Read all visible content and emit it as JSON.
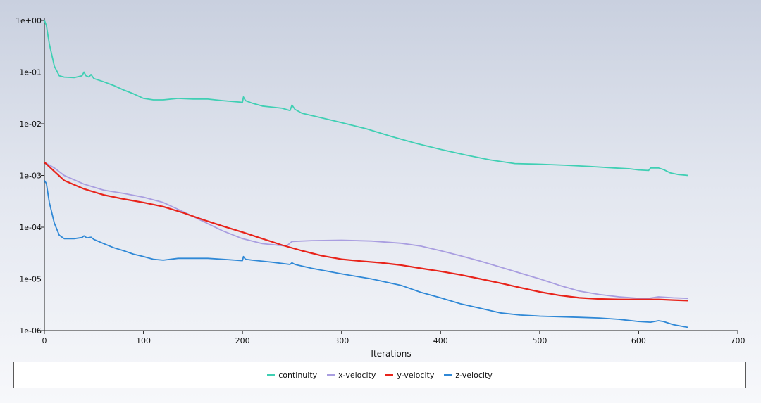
{
  "chart_data": {
    "type": "line",
    "title": "",
    "xlabel": "Iterations",
    "ylabel": "",
    "xlim": [
      0,
      700
    ],
    "ylim": [
      1e-06,
      1
    ],
    "y_scale": "log",
    "x_ticks": [
      "0",
      "100",
      "200",
      "300",
      "400",
      "500",
      "600",
      "700"
    ],
    "y_ticks": [
      "1e+00",
      "1e-01",
      "1e-02",
      "1e-03",
      "1e-04",
      "1e-05",
      "1e-06"
    ],
    "legend_placement": "bottom",
    "series": [
      {
        "name": "continuity",
        "color": "#3fcfb3",
        "points": [
          [
            0,
            1.0
          ],
          [
            2,
            0.8
          ],
          [
            5,
            0.35
          ],
          [
            10,
            0.13
          ],
          [
            15,
            0.085
          ],
          [
            20,
            0.08
          ],
          [
            30,
            0.078
          ],
          [
            38,
            0.085
          ],
          [
            40,
            0.1
          ],
          [
            42,
            0.085
          ],
          [
            45,
            0.08
          ],
          [
            47,
            0.09
          ],
          [
            50,
            0.075
          ],
          [
            60,
            0.065
          ],
          [
            70,
            0.055
          ],
          [
            80,
            0.045
          ],
          [
            90,
            0.038
          ],
          [
            100,
            0.031
          ],
          [
            110,
            0.029
          ],
          [
            120,
            0.029
          ],
          [
            135,
            0.031
          ],
          [
            150,
            0.03
          ],
          [
            165,
            0.03
          ],
          [
            180,
            0.028
          ],
          [
            200,
            0.026
          ],
          [
            201,
            0.033
          ],
          [
            203,
            0.028
          ],
          [
            210,
            0.025
          ],
          [
            220,
            0.022
          ],
          [
            240,
            0.02
          ],
          [
            248,
            0.018
          ],
          [
            250,
            0.023
          ],
          [
            253,
            0.019
          ],
          [
            260,
            0.016
          ],
          [
            280,
            0.013
          ],
          [
            300,
            0.0105
          ],
          [
            325,
            0.008
          ],
          [
            350,
            0.0057
          ],
          [
            375,
            0.0042
          ],
          [
            400,
            0.0032
          ],
          [
            425,
            0.0025
          ],
          [
            450,
            0.002
          ],
          [
            475,
            0.0017
          ],
          [
            500,
            0.00165
          ],
          [
            525,
            0.00158
          ],
          [
            550,
            0.0015
          ],
          [
            575,
            0.0014
          ],
          [
            590,
            0.00135
          ],
          [
            600,
            0.00128
          ],
          [
            610,
            0.00125
          ],
          [
            612,
            0.0014
          ],
          [
            620,
            0.0014
          ],
          [
            625,
            0.0013
          ],
          [
            632,
            0.00112
          ],
          [
            640,
            0.00104
          ],
          [
            650,
            0.001
          ]
        ]
      },
      {
        "name": "x-velocity",
        "color": "#a99ee0",
        "points": [
          [
            0,
            0.0018
          ],
          [
            10,
            0.0014
          ],
          [
            20,
            0.001
          ],
          [
            40,
            0.00068
          ],
          [
            60,
            0.00052
          ],
          [
            80,
            0.00045
          ],
          [
            100,
            0.00038
          ],
          [
            120,
            0.0003
          ],
          [
            140,
            0.0002
          ],
          [
            160,
            0.00013
          ],
          [
            180,
            8.5e-05
          ],
          [
            200,
            6e-05
          ],
          [
            220,
            4.8e-05
          ],
          [
            240,
            4.4e-05
          ],
          [
            245,
            4.4e-05
          ],
          [
            250,
            5.3e-05
          ],
          [
            270,
            5.5e-05
          ],
          [
            300,
            5.6e-05
          ],
          [
            330,
            5.4e-05
          ],
          [
            360,
            4.9e-05
          ],
          [
            380,
            4.3e-05
          ],
          [
            400,
            3.5e-05
          ],
          [
            420,
            2.8e-05
          ],
          [
            440,
            2.2e-05
          ],
          [
            460,
            1.7e-05
          ],
          [
            480,
            1.3e-05
          ],
          [
            500,
            1e-05
          ],
          [
            520,
            7.5e-06
          ],
          [
            540,
            5.8e-06
          ],
          [
            560,
            5e-06
          ],
          [
            580,
            4.5e-06
          ],
          [
            600,
            4.2e-06
          ],
          [
            610,
            4.2e-06
          ],
          [
            620,
            4.5e-06
          ],
          [
            635,
            4.3e-06
          ],
          [
            650,
            4.2e-06
          ]
        ]
      },
      {
        "name": "y-velocity",
        "color": "#e8231a",
        "points": [
          [
            0,
            0.0018
          ],
          [
            10,
            0.0012
          ],
          [
            20,
            0.0008
          ],
          [
            40,
            0.00055
          ],
          [
            60,
            0.00042
          ],
          [
            80,
            0.00035
          ],
          [
            100,
            0.0003
          ],
          [
            120,
            0.00025
          ],
          [
            140,
            0.00019
          ],
          [
            160,
            0.00014
          ],
          [
            180,
            0.000105
          ],
          [
            200,
            8e-05
          ],
          [
            220,
            6e-05
          ],
          [
            240,
            4.5e-05
          ],
          [
            260,
            3.5e-05
          ],
          [
            280,
            2.8e-05
          ],
          [
            300,
            2.4e-05
          ],
          [
            320,
            2.2e-05
          ],
          [
            340,
            2.05e-05
          ],
          [
            360,
            1.85e-05
          ],
          [
            380,
            1.6e-05
          ],
          [
            400,
            1.4e-05
          ],
          [
            420,
            1.2e-05
          ],
          [
            440,
            1e-05
          ],
          [
            460,
            8.3e-06
          ],
          [
            480,
            6.8e-06
          ],
          [
            500,
            5.6e-06
          ],
          [
            520,
            4.8e-06
          ],
          [
            540,
            4.3e-06
          ],
          [
            560,
            4.1e-06
          ],
          [
            580,
            4e-06
          ],
          [
            600,
            4e-06
          ],
          [
            620,
            4e-06
          ],
          [
            635,
            3.9e-06
          ],
          [
            650,
            3.8e-06
          ]
        ]
      },
      {
        "name": "z-velocity",
        "color": "#2f88d6",
        "points": [
          [
            0,
            0.0008
          ],
          [
            2,
            0.0007
          ],
          [
            5,
            0.0003
          ],
          [
            10,
            0.00012
          ],
          [
            15,
            7e-05
          ],
          [
            20,
            6e-05
          ],
          [
            30,
            6e-05
          ],
          [
            38,
            6.3e-05
          ],
          [
            40,
            6.8e-05
          ],
          [
            43,
            6.2e-05
          ],
          [
            47,
            6.4e-05
          ],
          [
            50,
            5.8e-05
          ],
          [
            60,
            4.8e-05
          ],
          [
            70,
            4e-05
          ],
          [
            80,
            3.5e-05
          ],
          [
            90,
            3e-05
          ],
          [
            100,
            2.7e-05
          ],
          [
            110,
            2.4e-05
          ],
          [
            120,
            2.3e-05
          ],
          [
            135,
            2.5e-05
          ],
          [
            150,
            2.5e-05
          ],
          [
            165,
            2.5e-05
          ],
          [
            180,
            2.4e-05
          ],
          [
            200,
            2.25e-05
          ],
          [
            201,
            2.7e-05
          ],
          [
            203,
            2.4e-05
          ],
          [
            210,
            2.3e-05
          ],
          [
            230,
            2.1e-05
          ],
          [
            248,
            1.9e-05
          ],
          [
            250,
            2.05e-05
          ],
          [
            253,
            1.9e-05
          ],
          [
            270,
            1.6e-05
          ],
          [
            300,
            1.25e-05
          ],
          [
            330,
            1e-05
          ],
          [
            360,
            7.5e-06
          ],
          [
            380,
            5.5e-06
          ],
          [
            400,
            4.3e-06
          ],
          [
            420,
            3.3e-06
          ],
          [
            440,
            2.7e-06
          ],
          [
            460,
            2.2e-06
          ],
          [
            480,
            2e-06
          ],
          [
            500,
            1.9e-06
          ],
          [
            520,
            1.85e-06
          ],
          [
            540,
            1.8e-06
          ],
          [
            560,
            1.75e-06
          ],
          [
            580,
            1.65e-06
          ],
          [
            600,
            1.5e-06
          ],
          [
            612,
            1.45e-06
          ],
          [
            620,
            1.55e-06
          ],
          [
            625,
            1.5e-06
          ],
          [
            635,
            1.3e-06
          ],
          [
            645,
            1.2e-06
          ],
          [
            650,
            1.15e-06
          ]
        ]
      }
    ]
  }
}
